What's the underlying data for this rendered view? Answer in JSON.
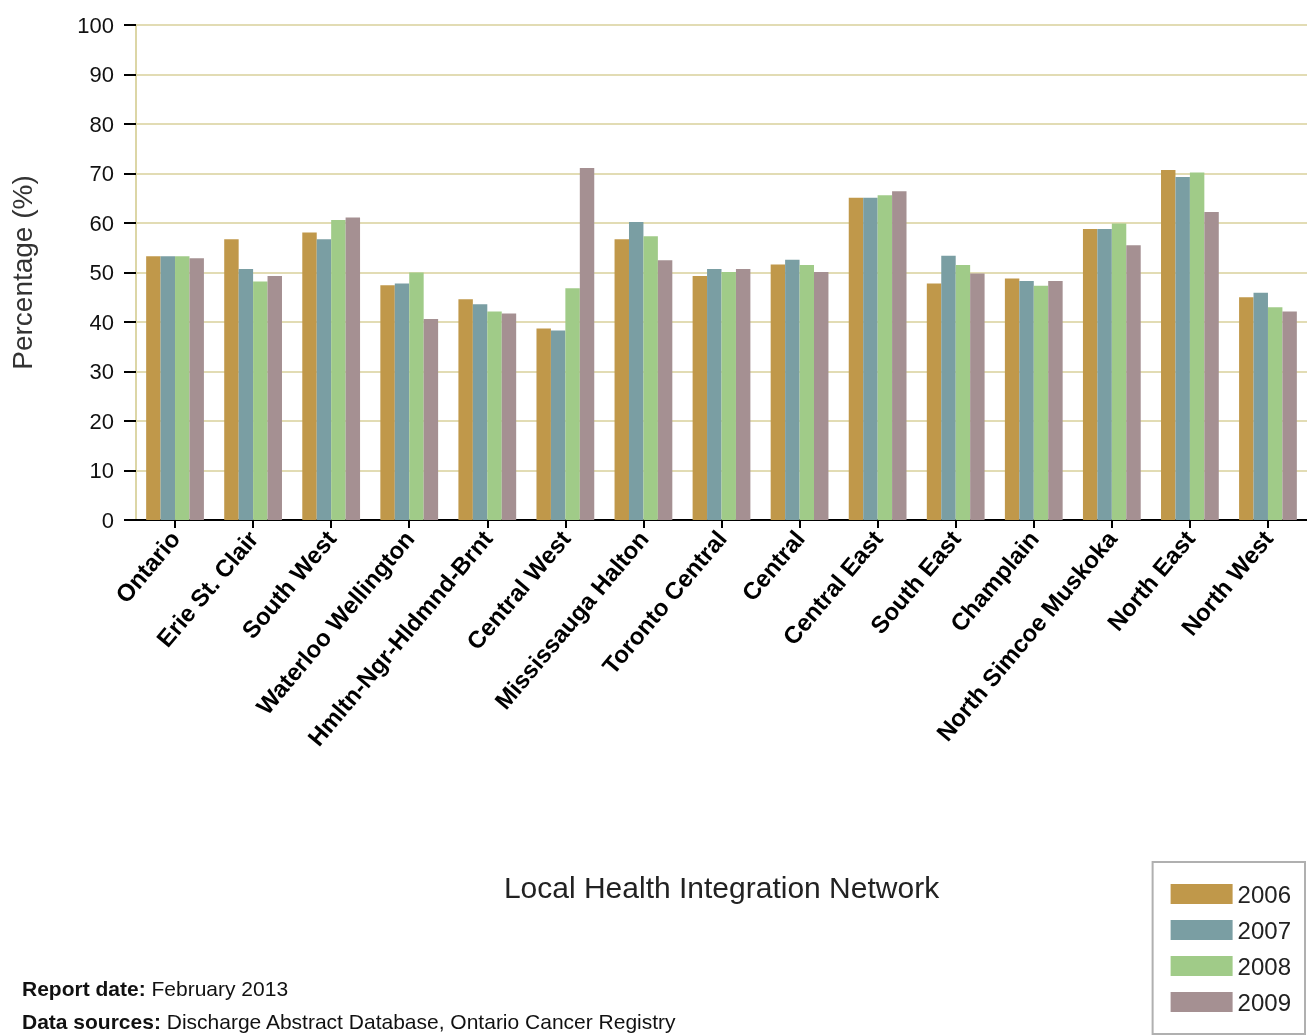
{
  "chart_data": {
    "type": "bar",
    "xlabel": "Local Health Integration Network",
    "ylabel": "Percentage (%)",
    "categories": [
      "Ontario",
      "Erie St. Clair",
      "South West",
      "Waterloo Wellington",
      "Hmltn-Ngr-Hldmnd-Brnt",
      "Central West",
      "Mississauga Halton",
      "Toronto Central",
      "Central",
      "Central East",
      "South East",
      "Champlain",
      "North Simcoe Muskoka",
      "North East",
      "North West"
    ],
    "series": [
      {
        "name": "2006",
        "color": "#c0984a",
        "values": [
          53.3,
          56.7,
          58.1,
          47.4,
          44.6,
          38.7,
          56.7,
          49.3,
          51.6,
          65.1,
          47.8,
          48.8,
          58.8,
          70.7,
          45.0
        ]
      },
      {
        "name": "2007",
        "color": "#7a9ea3",
        "values": [
          53.3,
          50.7,
          56.7,
          47.8,
          43.6,
          38.3,
          60.2,
          50.7,
          52.6,
          65.1,
          53.4,
          48.3,
          58.8,
          69.3,
          45.9
        ]
      },
      {
        "name": "2008",
        "color": "#a0cb88",
        "values": [
          53.3,
          48.2,
          60.6,
          50.0,
          42.1,
          46.8,
          57.3,
          50.1,
          51.5,
          65.6,
          51.5,
          47.3,
          59.9,
          70.2,
          43.0
        ]
      },
      {
        "name": "2009",
        "color": "#a59092",
        "values": [
          52.9,
          49.3,
          61.1,
          40.6,
          41.7,
          71.1,
          52.5,
          50.7,
          50.1,
          66.4,
          49.8,
          48.3,
          55.5,
          62.2,
          42.1
        ]
      }
    ],
    "ylim": [
      0,
      100
    ],
    "yticks": [
      0,
      10,
      20,
      30,
      40,
      50,
      60,
      70,
      80,
      90,
      100
    ],
    "grid": "y",
    "legend": "bottom right",
    "annotations": [
      "Report date: February 2013",
      "Data sources: Discharge Abstract Database, Ontario Cancer Registry"
    ]
  }
}
